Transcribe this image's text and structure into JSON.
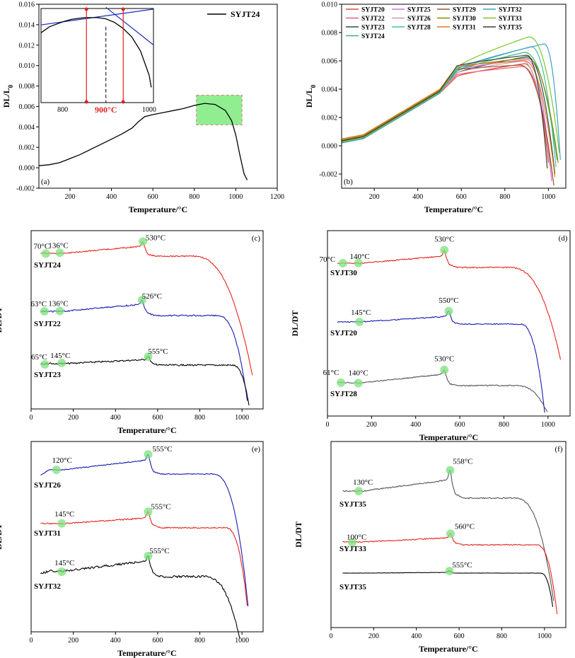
{
  "chart_data": [
    {
      "id": "a",
      "type": "line",
      "panel_label": "(a)",
      "xlabel": "Temperature/°C",
      "ylabel": "DL/L0",
      "xlim": [
        50,
        1200
      ],
      "ylim": [
        -0.002,
        0.016
      ],
      "xticks": [
        200,
        400,
        600,
        800,
        1000,
        1200
      ],
      "yticks": [
        -0.002,
        0.0,
        0.002,
        0.004,
        0.006,
        0.008,
        0.01,
        0.012,
        0.014,
        0.016
      ],
      "ytick_labels": [
        "-0.002",
        "0.000",
        "0.002",
        "0.004",
        "0.006",
        "0.008",
        "0.010",
        "0.012",
        "0.014",
        "0.016"
      ],
      "legend": [
        "SYJT24"
      ],
      "series": [
        {
          "name": "SYJT24",
          "color": "#000000",
          "x": [
            50,
            100,
            150,
            200,
            250,
            300,
            350,
            400,
            450,
            500,
            530,
            560,
            600,
            650,
            700,
            750,
            800,
            850,
            900,
            950,
            980,
            1000,
            1020,
            1040,
            1055
          ],
          "y": [
            0.0002,
            0.0003,
            0.0005,
            0.0009,
            0.0013,
            0.0018,
            0.0023,
            0.0028,
            0.0033,
            0.0039,
            0.0045,
            0.005,
            0.0052,
            0.0054,
            0.0056,
            0.0058,
            0.0061,
            0.0063,
            0.0062,
            0.0056,
            0.0046,
            0.0032,
            0.0012,
            -0.0006,
            -0.0012
          ]
        }
      ],
      "highlight_region": {
        "x": [
          810,
          1030
        ],
        "y": [
          0.0042,
          0.0071
        ],
        "color": "#90ee90"
      },
      "inset": {
        "xlim": [
          750,
          1010
        ],
        "ylim": [
          0.0,
          0.0155
        ],
        "xticks": [
          800,
          900,
          1000
        ],
        "annotation": "900°C",
        "curve": {
          "x": [
            750,
            770,
            800,
            820,
            850,
            880,
            900,
            920,
            940,
            960,
            980,
            1000,
            1005
          ],
          "y": [
            0.0115,
            0.0125,
            0.0133,
            0.0137,
            0.014,
            0.014,
            0.0138,
            0.0132,
            0.0122,
            0.0108,
            0.0085,
            0.0045,
            0.0025
          ]
        },
        "tangent_lines": [
          {
            "x": [
              750,
              1010
            ],
            "y": [
              0.0128,
              0.0154
            ]
          },
          {
            "x": [
              900,
              1010
            ],
            "y": [
              0.0157,
              0.0095
            ]
          }
        ],
        "vertical_markers": [
          855,
          940
        ],
        "dashed_marker": 900
      }
    },
    {
      "id": "b",
      "type": "line",
      "panel_label": "(b)",
      "xlabel": "Temperature/°C",
      "ylabel": "DL/L0",
      "xlim": [
        50,
        1080
      ],
      "ylim": [
        -0.003,
        0.01
      ],
      "xticks": [
        200,
        400,
        600,
        800,
        1000
      ],
      "yticks": [
        -0.002,
        0.0,
        0.002,
        0.004,
        0.006,
        0.008,
        0.01
      ],
      "ytick_labels": [
        "-0.002",
        "0.000",
        "0.002",
        "0.004",
        "0.006",
        "0.008",
        "0.010"
      ],
      "legend": [
        "SYJT20",
        "SYJT22",
        "SYJT23",
        "SYJT24",
        "SYJT25",
        "SYJT26",
        "SYJT28",
        "SYJT29",
        "SYJT30",
        "SYJT31",
        "SYJT32",
        "SYJT33",
        "SYJT35"
      ],
      "series": [
        {
          "name": "SYJT20",
          "color": "#e8473f",
          "peak": 0.0058,
          "peak_x": 890,
          "end_x": 1000,
          "end_y": -0.0012
        },
        {
          "name": "SYJT22",
          "color": "#e85d75",
          "peak": 0.0056,
          "peak_x": 880,
          "end_x": 1020,
          "end_y": -0.0022
        },
        {
          "name": "SYJT23",
          "color": "#2f4f4f",
          "peak": 0.0063,
          "peak_x": 900,
          "end_x": 1030,
          "end_y": -0.002
        },
        {
          "name": "SYJT24",
          "color": "#3cb371",
          "peak": 0.0066,
          "peak_x": 890,
          "end_x": 1040,
          "end_y": -0.001
        },
        {
          "name": "SYJT25",
          "color": "#d070e0",
          "peak": 0.0061,
          "peak_x": 900,
          "end_x": 1015,
          "end_y": -0.0025
        },
        {
          "name": "SYJT26",
          "color": "#c8a0b0",
          "peak": 0.006,
          "peak_x": 880,
          "end_x": 1010,
          "end_y": -0.0018
        },
        {
          "name": "SYJT28",
          "color": "#40c0a0",
          "peak": 0.007,
          "peak_x": 920,
          "end_x": 1035,
          "end_y": -0.0015
        },
        {
          "name": "SYJT29",
          "color": "#a0522d",
          "peak": 0.0057,
          "peak_x": 870,
          "end_x": 1025,
          "end_y": -0.0028
        },
        {
          "name": "SYJT30",
          "color": "#8b8b00",
          "peak": 0.0062,
          "peak_x": 900,
          "end_x": 1045,
          "end_y": -0.0012
        },
        {
          "name": "SYJT31",
          "color": "#e87820",
          "peak": 0.006,
          "peak_x": 890,
          "end_x": 1030,
          "end_y": -0.0022
        },
        {
          "name": "SYJT32",
          "color": "#3aa0c8",
          "peak": 0.0072,
          "peak_x": 980,
          "end_x": 1055,
          "end_y": -0.001
        },
        {
          "name": "SYJT33",
          "color": "#7bc62d",
          "peak": 0.0077,
          "peak_x": 910,
          "end_x": 1050,
          "end_y": -0.0005
        },
        {
          "name": "SYJT35",
          "color": "#404040",
          "peak": 0.0064,
          "peak_x": 900,
          "end_x": 995,
          "end_y": -0.0016
        }
      ]
    },
    {
      "id": "c",
      "type": "line",
      "panel_label": "(c)",
      "xlabel": "Temperature/°C",
      "ylabel": "DL/DT",
      "xlim": [
        0,
        1100
      ],
      "xticks": [
        0,
        200,
        400,
        600,
        800,
        1000
      ],
      "series": [
        {
          "name": "SYJT24",
          "color": "#e8231f",
          "peaks": [
            "70°C",
            "136°C",
            "530°C"
          ],
          "peak_x": [
            70,
            136,
            530
          ]
        },
        {
          "name": "SYJT22",
          "color": "#1a1ab4",
          "peaks": [
            "63°C",
            "136°C",
            "526°C"
          ],
          "peak_x": [
            63,
            136,
            526
          ]
        },
        {
          "name": "SYJT23",
          "color": "#000000",
          "peaks": [
            "65°C",
            "145°C",
            "555°C"
          ],
          "peak_x": [
            65,
            145,
            555
          ]
        }
      ]
    },
    {
      "id": "d",
      "type": "line",
      "panel_label": "(d)",
      "xlabel": "Temperature/°C",
      "ylabel": "DL/DT",
      "xlim": [
        0,
        1100
      ],
      "xticks": [
        0,
        200,
        400,
        600,
        800,
        1000
      ],
      "series": [
        {
          "name": "SYJT30",
          "color": "#e8231f",
          "peaks": [
            "70°C",
            "140°C",
            "530°C"
          ],
          "peak_x": [
            70,
            140,
            530
          ]
        },
        {
          "name": "SYJT20",
          "color": "#1a1ab4",
          "peaks": [
            "145°C",
            "550°C"
          ],
          "peak_x": [
            145,
            550
          ]
        },
        {
          "name": "SYJT28",
          "color": "#555566",
          "peaks": [
            "61°C",
            "140°C",
            "530°C"
          ],
          "peak_x": [
            61,
            140,
            530
          ]
        }
      ]
    },
    {
      "id": "e",
      "type": "line",
      "panel_label": "(e)",
      "xlabel": "Temperature/°C",
      "ylabel": "DL/DT",
      "xlim": [
        0,
        1100
      ],
      "xticks": [
        0,
        200,
        400,
        600,
        800,
        1000
      ],
      "series": [
        {
          "name": "SYJT26",
          "color": "#1a1ab4",
          "peaks": [
            "120°C",
            "555°C"
          ],
          "peak_x": [
            120,
            555
          ]
        },
        {
          "name": "SYJT31",
          "color": "#e8231f",
          "peaks": [
            "145°C",
            "555°C"
          ],
          "peak_x": [
            145,
            555
          ]
        },
        {
          "name": "SYJT32",
          "color": "#000000",
          "peaks": [
            "145°C",
            "555°C"
          ],
          "peak_x": [
            145,
            555
          ]
        }
      ]
    },
    {
      "id": "f",
      "type": "line",
      "panel_label": "(f)",
      "xlabel": "Temperature/°C",
      "ylabel": "DL/DT",
      "xlim": [
        0,
        1100
      ],
      "xticks": [
        0,
        200,
        400,
        600,
        800,
        1000
      ],
      "series": [
        {
          "name": "SYJT35",
          "color": "#555555",
          "peaks": [
            "130°C",
            "558°C"
          ],
          "peak_x": [
            130,
            558
          ]
        },
        {
          "name": "SYJT33",
          "color": "#e8231f",
          "peaks": [
            "100°C",
            "560°C"
          ],
          "peak_x": [
            100,
            560
          ]
        },
        {
          "name": "SYJT35",
          "color": "#000000",
          "peaks": [
            "555°C"
          ],
          "peak_x": [
            555
          ]
        }
      ]
    }
  ]
}
